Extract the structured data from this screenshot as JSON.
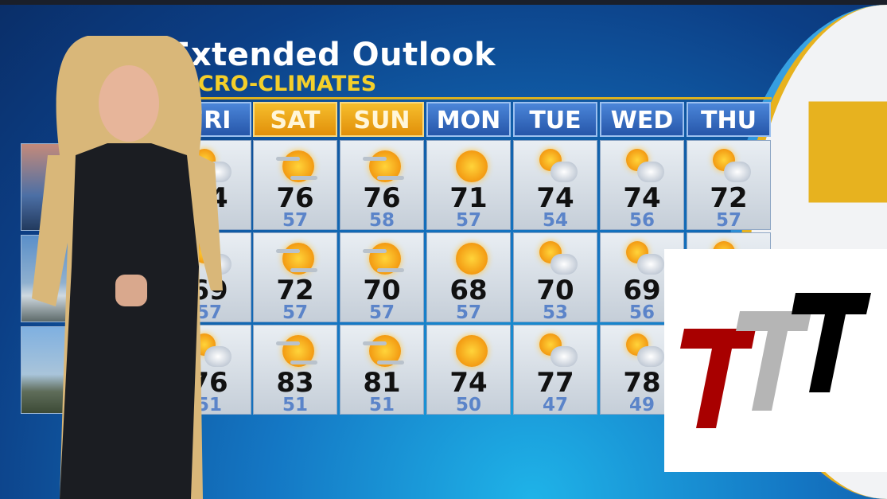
{
  "header": {
    "title": "Extended Outlook",
    "subtitle": "MICRO-CLIMATES"
  },
  "days": [
    {
      "label": "FRI",
      "weekend": false
    },
    {
      "label": "SAT",
      "weekend": true
    },
    {
      "label": "SUN",
      "weekend": true
    },
    {
      "label": "MON",
      "weekend": false
    },
    {
      "label": "TUE",
      "weekend": false
    },
    {
      "label": "WED",
      "weekend": false
    },
    {
      "label": "THU",
      "weekend": false
    }
  ],
  "rows": [
    {
      "cells": [
        {
          "icon": "partly-cloudy-icon",
          "hi": "74",
          "lo": ""
        },
        {
          "icon": "hazy-sun-icon",
          "hi": "76",
          "lo": "57"
        },
        {
          "icon": "hazy-sun-icon",
          "hi": "76",
          "lo": "58"
        },
        {
          "icon": "sunny-icon",
          "hi": "71",
          "lo": "57"
        },
        {
          "icon": "partly-cloudy-icon",
          "hi": "74",
          "lo": "54"
        },
        {
          "icon": "partly-cloudy-icon",
          "hi": "74",
          "lo": "56"
        },
        {
          "icon": "partly-cloudy-icon",
          "hi": "72",
          "lo": "57"
        }
      ]
    },
    {
      "cells": [
        {
          "icon": "partly-cloudy-icon",
          "hi": "69",
          "lo": "57"
        },
        {
          "icon": "hazy-sun-icon",
          "hi": "72",
          "lo": "57"
        },
        {
          "icon": "hazy-sun-icon",
          "hi": "70",
          "lo": "57"
        },
        {
          "icon": "sunny-icon",
          "hi": "68",
          "lo": "57"
        },
        {
          "icon": "partly-cloudy-icon",
          "hi": "70",
          "lo": "53"
        },
        {
          "icon": "partly-cloudy-icon",
          "hi": "69",
          "lo": "56"
        },
        {
          "icon": "partly-cloudy-icon",
          "hi": "",
          "lo": ""
        }
      ]
    },
    {
      "cells": [
        {
          "icon": "partly-cloudy-icon",
          "hi": "76",
          "lo": "51"
        },
        {
          "icon": "hazy-sun-icon",
          "hi": "83",
          "lo": "51"
        },
        {
          "icon": "hazy-sun-icon",
          "hi": "81",
          "lo": "51"
        },
        {
          "icon": "sunny-icon",
          "hi": "74",
          "lo": "50"
        },
        {
          "icon": "partly-cloudy-icon",
          "hi": "77",
          "lo": "47"
        },
        {
          "icon": "partly-cloudy-icon",
          "hi": "78",
          "lo": "49"
        },
        {
          "icon": "partly-cloudy-icon",
          "hi": "",
          "lo": ""
        }
      ]
    }
  ],
  "colors": {
    "weekend": "#f0a81a",
    "weekday": "#2f63b5",
    "low_temp": "#5b84c9",
    "accent": "#f4cf2a"
  },
  "logo": {
    "text": "TTT",
    "colors": [
      "#a80000",
      "#b5b5b5",
      "#000000"
    ]
  }
}
